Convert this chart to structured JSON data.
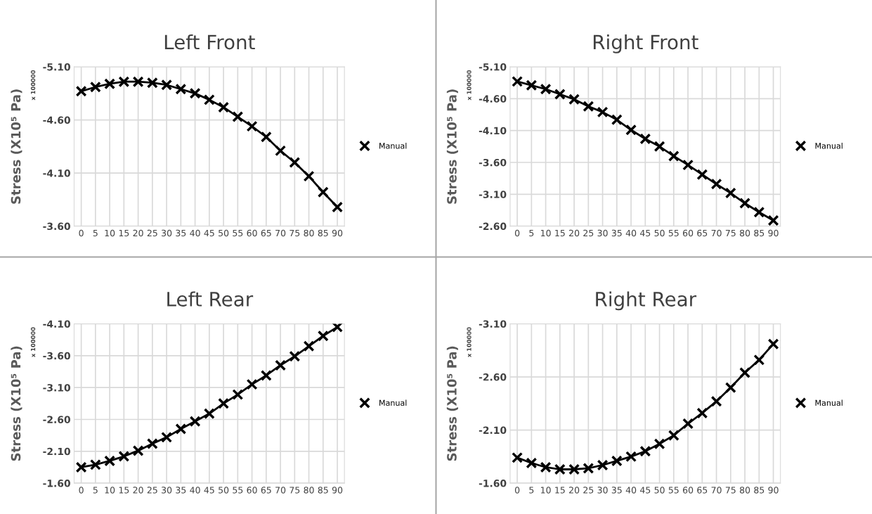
{
  "chart_data": [
    {
      "type": "line",
      "title": "Left Front",
      "ylabel": "Stress (X10⁵ Pa)",
      "annotations": [
        "x 100000"
      ],
      "grid": true,
      "legend": "right",
      "categories": [
        "0",
        "5",
        "10",
        "15",
        "20",
        "25",
        "30",
        "35",
        "40",
        "45",
        "50",
        "55",
        "60",
        "65",
        "70",
        "75",
        "80",
        "85",
        "90"
      ],
      "ylim": [
        -3.6,
        -5.1
      ],
      "yticks": [
        {
          "value": -5.1,
          "label": "-5.10"
        },
        {
          "value": -4.6,
          "label": "-4.60"
        },
        {
          "value": -4.1,
          "label": "-4.10"
        },
        {
          "value": -3.6,
          "label": "-3.60"
        }
      ],
      "series": [
        {
          "color": "#000000",
          "marker": "none",
          "line_style": "solid",
          "values": [
            -4.87,
            -4.91,
            -4.94,
            -4.96,
            -4.96,
            -4.95,
            -4.93,
            -4.89,
            -4.85,
            -4.79,
            -4.72,
            -4.63,
            -4.54,
            -4.44,
            -4.31,
            -4.2,
            -4.07,
            -3.92,
            -3.78
          ]
        },
        {
          "name": "Manual",
          "type": "scatter",
          "color": "#000000",
          "marker": "cross",
          "values": [
            -4.87,
            -4.91,
            -4.94,
            -4.96,
            -4.96,
            -4.95,
            -4.93,
            -4.89,
            -4.85,
            -4.79,
            -4.72,
            -4.63,
            -4.54,
            -4.44,
            -4.31,
            -4.2,
            -4.07,
            -3.92,
            -3.78
          ]
        }
      ]
    },
    {
      "type": "line",
      "title": "Right Front",
      "ylabel": "Stress (X10⁵ Pa)",
      "annotations": [
        "x 100000"
      ],
      "grid": true,
      "legend": "right",
      "categories": [
        "0",
        "5",
        "10",
        "15",
        "20",
        "25",
        "30",
        "35",
        "40",
        "45",
        "50",
        "55",
        "60",
        "65",
        "70",
        "75",
        "80",
        "85",
        "90"
      ],
      "ylim": [
        -2.6,
        -5.1
      ],
      "yticks": [
        {
          "value": -5.1,
          "label": "-5.10"
        },
        {
          "value": -4.6,
          "label": "-4.60"
        },
        {
          "value": -4.1,
          "label": "-4.10"
        },
        {
          "value": -3.6,
          "label": "-3.60"
        },
        {
          "value": -3.1,
          "label": "-3.10"
        },
        {
          "value": -2.6,
          "label": "-2.60"
        }
      ],
      "series": [
        {
          "color": "#000000",
          "marker": "none",
          "line_style": "solid",
          "values": [
            -4.87,
            -4.81,
            -4.75,
            -4.67,
            -4.59,
            -4.48,
            -4.39,
            -4.27,
            -4.11,
            -3.97,
            -3.85,
            -3.7,
            -3.56,
            -3.41,
            -3.26,
            -3.12,
            -2.96,
            -2.82,
            -2.69
          ]
        },
        {
          "name": "Manual",
          "type": "scatter",
          "color": "#000000",
          "marker": "cross",
          "values": [
            -4.87,
            -4.81,
            -4.75,
            -4.67,
            -4.59,
            -4.48,
            -4.39,
            -4.27,
            -4.11,
            -3.97,
            -3.85,
            -3.7,
            -3.56,
            -3.41,
            -3.26,
            -3.12,
            -2.96,
            -2.82,
            -2.69
          ]
        }
      ]
    },
    {
      "type": "line",
      "title": "Left Rear",
      "ylabel": "Stress (X10⁵ Pa)",
      "annotations": [
        "x 100000"
      ],
      "grid": true,
      "legend": "right",
      "categories": [
        "0",
        "5",
        "10",
        "15",
        "20",
        "25",
        "30",
        "35",
        "40",
        "45",
        "50",
        "55",
        "60",
        "65",
        "70",
        "75",
        "80",
        "85",
        "90"
      ],
      "ylim": [
        -1.6,
        -4.1
      ],
      "yticks": [
        {
          "value": -4.1,
          "label": "-4.10"
        },
        {
          "value": -3.6,
          "label": "-3.60"
        },
        {
          "value": -3.1,
          "label": "-3.10"
        },
        {
          "value": -2.6,
          "label": "-2.60"
        },
        {
          "value": -2.1,
          "label": "-2.10"
        },
        {
          "value": -1.6,
          "label": "-1.60"
        }
      ],
      "series": [
        {
          "color": "#000000",
          "marker": "none",
          "line_style": "solid",
          "values": [
            -1.85,
            -1.89,
            -1.95,
            -2.02,
            -2.11,
            -2.22,
            -2.32,
            -2.45,
            -2.57,
            -2.69,
            -2.85,
            -2.99,
            -3.15,
            -3.29,
            -3.45,
            -3.59,
            -3.75,
            -3.91,
            -4.05
          ]
        },
        {
          "name": "Manual",
          "type": "scatter",
          "color": "#000000",
          "marker": "cross",
          "values": [
            -1.85,
            -1.89,
            -1.95,
            -2.02,
            -2.11,
            -2.22,
            -2.32,
            -2.45,
            -2.57,
            -2.69,
            -2.85,
            -2.99,
            -3.15,
            -3.29,
            -3.45,
            -3.59,
            -3.75,
            -3.91,
            -4.05
          ]
        }
      ]
    },
    {
      "type": "line",
      "title": "Right Rear",
      "ylabel": "Stress (X10⁵ Pa)",
      "annotations": [
        "x 100000"
      ],
      "grid": true,
      "legend": "right",
      "categories": [
        "0",
        "5",
        "10",
        "15",
        "20",
        "25",
        "30",
        "35",
        "40",
        "45",
        "50",
        "55",
        "60",
        "65",
        "70",
        "75",
        "80",
        "85",
        "90"
      ],
      "ylim": [
        -1.6,
        -3.1
      ],
      "yticks": [
        {
          "value": -3.1,
          "label": "-3.10"
        },
        {
          "value": -2.6,
          "label": "-2.60"
        },
        {
          "value": -2.1,
          "label": "-2.10"
        },
        {
          "value": -1.6,
          "label": "-1.60"
        }
      ],
      "series": [
        {
          "color": "#000000",
          "marker": "none",
          "line_style": "solid",
          "values": [
            -1.84,
            -1.79,
            -1.75,
            -1.73,
            -1.73,
            -1.74,
            -1.77,
            -1.81,
            -1.85,
            -1.9,
            -1.97,
            -2.05,
            -2.16,
            -2.26,
            -2.37,
            -2.5,
            -2.64,
            -2.76,
            -2.91
          ]
        },
        {
          "name": "Manual",
          "type": "scatter",
          "color": "#000000",
          "marker": "cross",
          "values": [
            -1.84,
            -1.79,
            -1.75,
            -1.73,
            -1.73,
            -1.74,
            -1.77,
            -1.81,
            -1.85,
            -1.9,
            -1.97,
            -2.05,
            -2.16,
            -2.26,
            -2.37,
            -2.5,
            -2.64,
            -2.76,
            -2.91
          ]
        }
      ]
    }
  ]
}
